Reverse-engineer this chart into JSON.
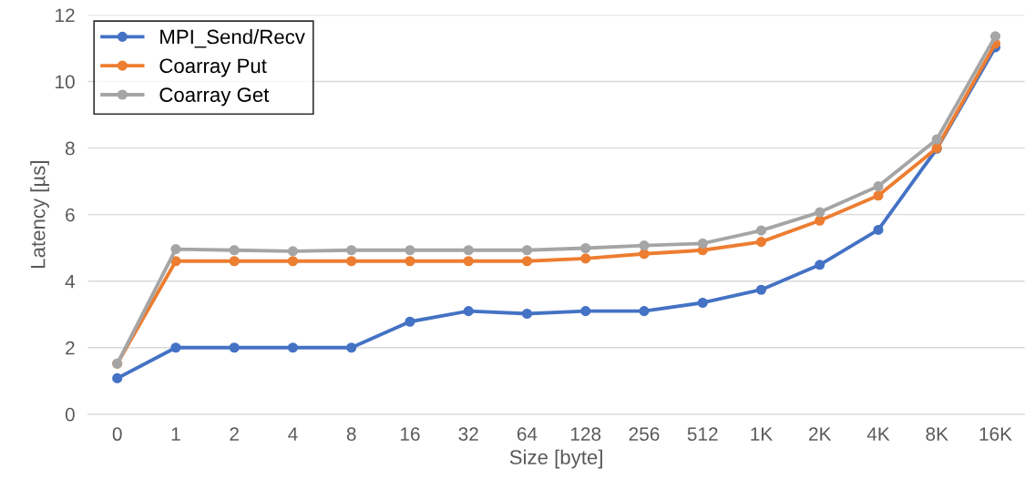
{
  "chart_data": {
    "type": "line",
    "xlabel": "Size [byte]",
    "ylabel": "Latency [µs]",
    "categories": [
      "0",
      "1",
      "2",
      "4",
      "8",
      "16",
      "32",
      "64",
      "128",
      "256",
      "512",
      "1K",
      "2K",
      "4K",
      "8K",
      "16K"
    ],
    "series": [
      {
        "name": "MPI_Send/Recv",
        "color": "#4472c4",
        "values": [
          1.08,
          2.0,
          2.0,
          2.0,
          2.0,
          2.78,
          3.1,
          3.02,
          3.1,
          3.1,
          3.35,
          3.74,
          4.49,
          5.54,
          7.98,
          11.03
        ]
      },
      {
        "name": "Coarray Put",
        "color": "#ed7d31",
        "values": [
          1.52,
          4.6,
          4.6,
          4.6,
          4.6,
          4.6,
          4.6,
          4.6,
          4.68,
          4.82,
          4.93,
          5.18,
          5.82,
          6.57,
          8.0,
          11.14
        ]
      },
      {
        "name": "Coarray Get",
        "color": "#a5a5a5",
        "values": [
          1.52,
          4.96,
          4.93,
          4.9,
          4.93,
          4.93,
          4.93,
          4.93,
          4.99,
          5.07,
          5.13,
          5.52,
          6.07,
          6.85,
          8.26,
          11.36
        ]
      }
    ],
    "ylim": [
      0,
      12
    ],
    "yticks": [
      0,
      2,
      4,
      6,
      8,
      10,
      12
    ],
    "grid": "y",
    "legend": "top left",
    "marker": "circle",
    "line_style": "solid"
  }
}
